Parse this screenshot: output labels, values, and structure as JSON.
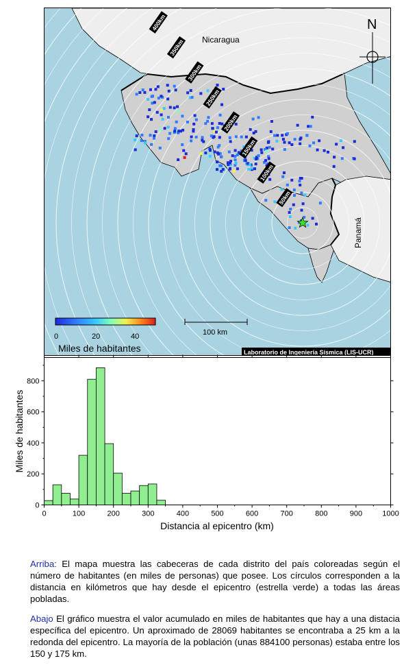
{
  "map": {
    "country_labels": {
      "nicaragua": "Nicaragua",
      "panama": "Panamá"
    },
    "north_label": "N",
    "ring_labels": [
      "50km",
      "100km",
      "150km",
      "200km",
      "250km",
      "300km",
      "350km",
      "400km",
      "450km",
      "500km"
    ],
    "scalebar_label": "100 km",
    "colorbar": {
      "ticks": [
        "0",
        "20",
        "40"
      ],
      "title": "Miles de habitantes",
      "range": [
        0,
        50
      ],
      "colors": [
        "#1a2cd8",
        "#2f7bff",
        "#36c8ff",
        "#7dffc0",
        "#f2f250",
        "#ff8a1e",
        "#d81e1e"
      ]
    },
    "credit": "Laboratorio de Ingeniería Sísmica (LIS-UCR)",
    "colors": {
      "sea": "#a9d3e0",
      "land": "#d0d0d0",
      "neighbor": "#eeeeee",
      "epicenter": "#3bdc2a"
    },
    "epicenter_icon": "star-icon",
    "compass_icon": "crosshair-compass-icon"
  },
  "chart_data": {
    "type": "bar",
    "xlabel": "Distancia al epicentro (km)",
    "ylabel": "Miles de habitantes",
    "xlim": [
      0,
      1000
    ],
    "ylim": [
      0,
      950
    ],
    "xticks": [
      0,
      100,
      200,
      300,
      400,
      500,
      600,
      700,
      800,
      900,
      1000
    ],
    "yticks": [
      0,
      200,
      400,
      600,
      800
    ],
    "bin_width": 25,
    "bin_starts": [
      0,
      25,
      50,
      75,
      100,
      125,
      150,
      175,
      200,
      225,
      250,
      275,
      300,
      325
    ],
    "values": [
      28,
      130,
      75,
      38,
      320,
      810,
      884,
      395,
      205,
      75,
      90,
      125,
      135,
      30
    ],
    "bar_color": "#90ee90"
  },
  "captions": {
    "top_lead": "Arriba:",
    "top_text": " El mapa muestra las cabeceras de cada distrito del país coloreadas según el número de habitantes (en miles de personas) que posee.  Los círculos corresponden a la distancia en kilómetros que hay desde el epicentro (estrella verde) a todas las áreas pobladas.",
    "bottom_lead": "Abajo",
    "bottom_text": " El gráfico muestra el valor acumulado en miles de habitantes que hay a una distacia específica del epicentro.  Un aproximado de 28069 habitantes se encontraba a 25 km a la redonda del epicentro.  La mayoría de la población (unas 884100 personas) estaba entre los 150 y 175 km."
  }
}
